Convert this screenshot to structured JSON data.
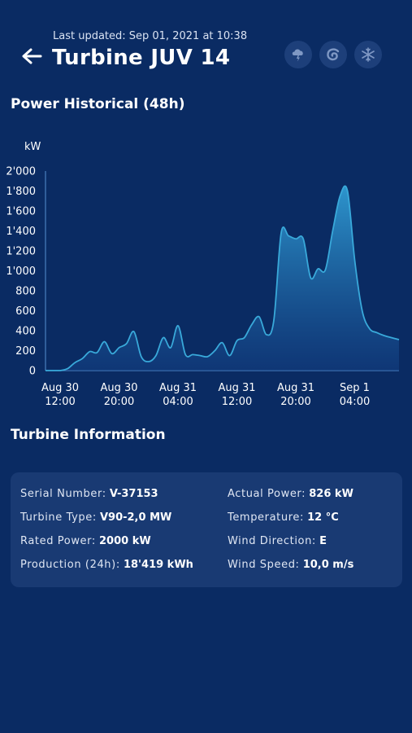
{
  "header": {
    "last_updated": "Last updated: Sep 01, 2021 at 10:38",
    "title": "Turbine JUV 14",
    "back_icon": "arrow-left-icon",
    "weather_icons": [
      "storm-cloud-icon",
      "cyclone-icon",
      "snowflake-icon"
    ]
  },
  "chart_section": {
    "title": "Power Historical (48h)"
  },
  "chart_data": {
    "type": "area",
    "title": "",
    "xlabel": "",
    "ylabel": "kW",
    "ylim": [
      0,
      2000
    ],
    "yticks": [
      "0",
      "200",
      "400",
      "600",
      "800",
      "1'000",
      "1'200",
      "1'400",
      "1'600",
      "1'800",
      "2'000"
    ],
    "xticks": [
      {
        "t": 0,
        "line1": "Aug 30",
        "line2": "12:00"
      },
      {
        "t": 8,
        "line1": "Aug 30",
        "line2": "20:00"
      },
      {
        "t": 16,
        "line1": "Aug 31",
        "line2": "04:00"
      },
      {
        "t": 24,
        "line1": "Aug 31",
        "line2": "12:00"
      },
      {
        "t": 32,
        "line1": "Aug 31",
        "line2": "20:00"
      },
      {
        "t": 40,
        "line1": "Sep 1",
        "line2": "04:00"
      }
    ],
    "series": [
      {
        "x": [
          0,
          1,
          2,
          3,
          4,
          5,
          6,
          7,
          8,
          9,
          10,
          11,
          12,
          13,
          14,
          15,
          16,
          17,
          18,
          19,
          20,
          21,
          22,
          23,
          24,
          25,
          26,
          27,
          28,
          29,
          30,
          31,
          32,
          33,
          34,
          35,
          36,
          37,
          38,
          39,
          40,
          41,
          42,
          43,
          44,
          45,
          46,
          47,
          48
        ],
        "values": [
          0,
          0,
          0,
          20,
          80,
          120,
          190,
          180,
          290,
          170,
          230,
          270,
          390,
          140,
          90,
          150,
          330,
          230,
          450,
          160,
          160,
          150,
          140,
          200,
          280,
          150,
          300,
          330,
          460,
          540,
          360,
          500,
          1380,
          1350,
          1320,
          1320,
          930,
          1020,
          1010,
          1400,
          1750,
          1800,
          1100,
          600,
          420,
          380,
          350,
          330,
          310
        ]
      }
    ],
    "color": "#39a9da"
  },
  "info_section": {
    "title": "Turbine Information",
    "left": [
      {
        "label": "Serial Number:",
        "value": "V-37153"
      },
      {
        "label": "Turbine Type:",
        "value": "V90-2,0 MW"
      },
      {
        "label": "Rated Power:",
        "value": "2000 kW"
      },
      {
        "label": "Production (24h):",
        "value": "18'419 kWh"
      }
    ],
    "right": [
      {
        "label": "Actual Power:",
        "value": "826 kW"
      },
      {
        "label": "Temperature:",
        "value": "12 °C"
      },
      {
        "label": "Wind Direction:",
        "value": "E"
      },
      {
        "label": "Wind Speed:",
        "value": "10,0 m/s"
      }
    ]
  }
}
